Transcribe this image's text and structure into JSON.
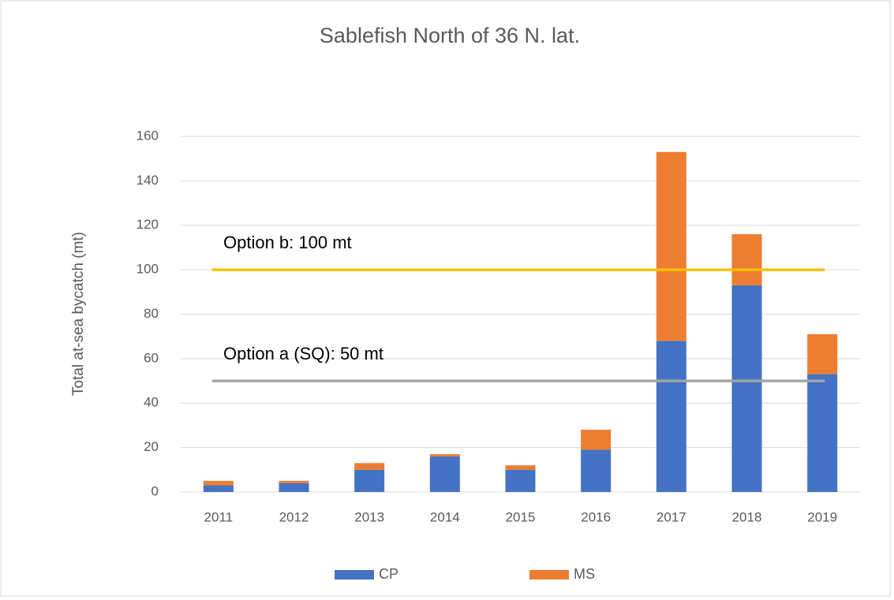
{
  "chart_data": {
    "type": "stacked_bar",
    "title": "Sablefish North of 36 N. lat.",
    "ylabel": "Total at-sea bycatch (mt)",
    "categories": [
      "2011",
      "2012",
      "2013",
      "2014",
      "2015",
      "2016",
      "2017",
      "2018",
      "2019"
    ],
    "series": [
      {
        "name": "CP",
        "color": "#4472c4",
        "values": [
          3,
          4,
          10,
          16,
          10,
          19,
          68,
          93,
          53
        ]
      },
      {
        "name": "MS",
        "color": "#ed7d31",
        "values": [
          2,
          1,
          3,
          1,
          2,
          9,
          85,
          23,
          18
        ]
      }
    ],
    "reference_lines": [
      {
        "label": "Option b: 100 mt",
        "value": 100,
        "color": "#ffc000"
      },
      {
        "label": "Option a (SQ): 50 mt",
        "value": 50,
        "color": "#a5a5a5"
      }
    ],
    "ylim": [
      0,
      160
    ],
    "yticks": [
      0,
      20,
      40,
      60,
      80,
      100,
      120,
      140,
      160
    ],
    "grid": true,
    "legend": "bottom"
  }
}
